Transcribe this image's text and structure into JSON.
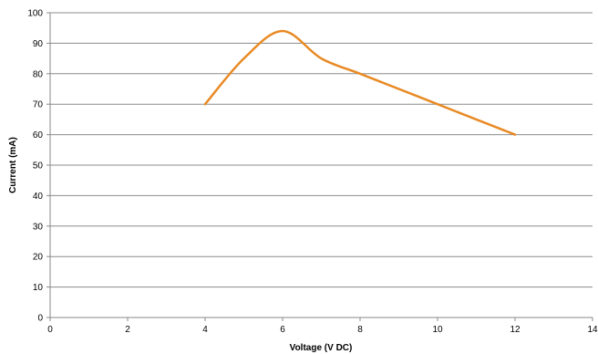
{
  "chart_data": {
    "type": "line",
    "title": "",
    "xlabel": "Voltage (V DC)",
    "ylabel": "Current (mA)",
    "xlim": [
      0,
      14
    ],
    "ylim": [
      0,
      100
    ],
    "xticks": [
      0,
      2,
      4,
      6,
      8,
      10,
      12,
      14
    ],
    "yticks": [
      0,
      10,
      20,
      30,
      40,
      50,
      60,
      70,
      80,
      90,
      100
    ],
    "grid": "horizontal",
    "legend": "none",
    "series": [
      {
        "color": "#E88A25",
        "x": [
          4,
          5,
          6,
          7,
          8,
          9,
          10,
          11,
          12
        ],
        "y": [
          70,
          85,
          94,
          85,
          80,
          75,
          70,
          65,
          60
        ]
      }
    ]
  }
}
